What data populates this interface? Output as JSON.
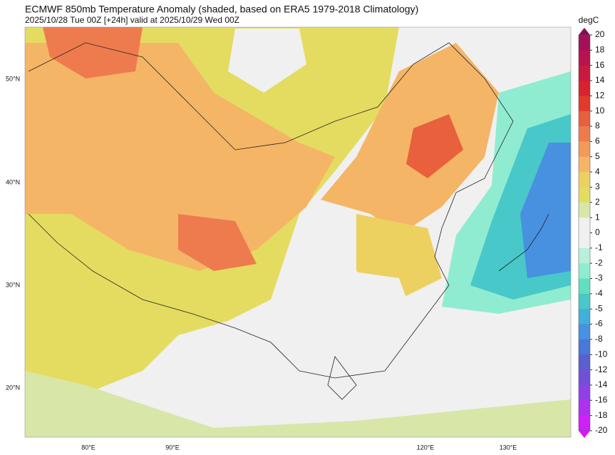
{
  "header": {
    "title": "ECMWF 850mb Temperature Anomaly (shaded, based on ERA5 1979-2018 Climatology)",
    "subtitle": "2025/10/28 Tue 00Z [+24h] valid at 2025/10/29 Wed 00Z"
  },
  "colorbar": {
    "unit": "degC",
    "levels": [
      20,
      18,
      16,
      14,
      12,
      10,
      8,
      6,
      5,
      4,
      3,
      2,
      1,
      0,
      -1,
      -2,
      -3,
      -4,
      -5,
      -6,
      -8,
      -10,
      -12,
      -14,
      -16,
      -18,
      -20
    ],
    "colors": [
      "#8b0a50",
      "#a3105a",
      "#b8124f",
      "#c81a3f",
      "#d8232f",
      "#e03a2a",
      "#e8603c",
      "#ee7b4e",
      "#f29a5a",
      "#f5b566",
      "#ecd060",
      "#e4dc60",
      "#d8e6a8",
      "#f0f0f0",
      "#f0f0f0",
      "#b8f0dc",
      "#90ecd0",
      "#60e0c0",
      "#48c8c8",
      "#40b0d8",
      "#4890e0",
      "#4878d8",
      "#5a60d0",
      "#7050d8",
      "#9040e8",
      "#b030f0",
      "#d020f8",
      "#e010ff"
    ]
  },
  "map": {
    "lat_labels": [
      "50°N",
      "40°N",
      "30°N",
      "20°N"
    ],
    "lon_labels": [
      "80°E",
      "90°E",
      "120°E",
      "130°E"
    ]
  }
}
